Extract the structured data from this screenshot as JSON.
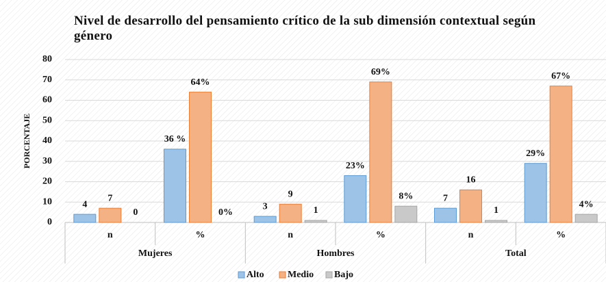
{
  "chart_data": {
    "type": "bar",
    "title": "Nivel de desarrollo del pensamiento crítico de la sub dimensión contextual  según género",
    "ylabel": "PORCENTAJE",
    "categories": [
      "n",
      "%",
      "n",
      "%",
      "n",
      "%"
    ],
    "groups": [
      "Mujeres",
      "Hombres",
      "Total"
    ],
    "series": [
      {
        "name": "Alto",
        "color": "#9dc3e6",
        "stroke": "#5b9bd5",
        "values": [
          4,
          36,
          3,
          23,
          7,
          29
        ],
        "value_labels": [
          "4",
          "36 %",
          "3",
          "23%",
          "7",
          "29%"
        ]
      },
      {
        "name": "Medio",
        "color": "#f4b183",
        "stroke": "#ed7d31",
        "values": [
          7,
          64,
          9,
          69,
          16,
          67
        ],
        "value_labels": [
          "7",
          "64%",
          "9",
          "69%",
          "16",
          "67%"
        ]
      },
      {
        "name": "Bajo",
        "color": "#c9c9c9",
        "stroke": "#a5a5a5",
        "values": [
          0,
          0,
          1,
          8,
          1,
          4
        ],
        "value_labels": [
          "0",
          "0%",
          "1",
          "8%",
          "1",
          "4%"
        ]
      }
    ],
    "ylim": [
      0,
      80
    ],
    "yticks": [
      0,
      10,
      20,
      30,
      40,
      50,
      60,
      70,
      80
    ],
    "grid": true,
    "legend": "bottom"
  }
}
